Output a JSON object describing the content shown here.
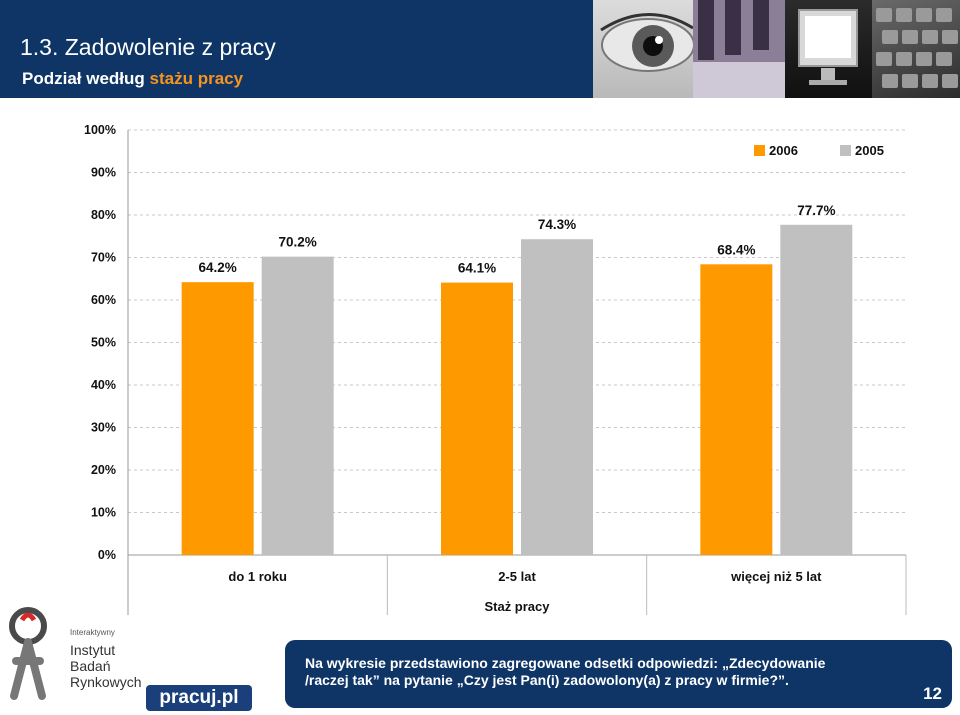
{
  "header": {
    "title": "1.3. Zadowolenie z pracy",
    "subtitle_prefix": "Podział według",
    "subtitle_highlight": "stażu pracy"
  },
  "colors": {
    "header_bg": "#0e3566",
    "accent": "#f7941d",
    "series_2006": "#ff9900",
    "series_2005": "#c0c0c0"
  },
  "chart_data": {
    "type": "bar",
    "categories": [
      "do 1 roku",
      "2-5 lat",
      "więcej niż 5 lat"
    ],
    "series": [
      {
        "name": "2006",
        "values": [
          64.2,
          64.1,
          68.4
        ],
        "labels": [
          "64.2%",
          "64.1%",
          "68.4%"
        ]
      },
      {
        "name": "2005",
        "values": [
          70.2,
          74.3,
          77.7
        ],
        "labels": [
          "70.2%",
          "74.3%",
          "77.7%"
        ]
      }
    ],
    "yticks": [
      "0%",
      "10%",
      "20%",
      "30%",
      "40%",
      "50%",
      "60%",
      "70%",
      "80%",
      "90%",
      "100%"
    ],
    "ylim": [
      0,
      100
    ],
    "xlabel": "Staż pracy",
    "ylabel": "",
    "title": "",
    "legend_position": "top-right",
    "grid": true
  },
  "footer": {
    "ibr_small": "Interaktywny",
    "ibr_lines": [
      "Instytut",
      "Badań",
      "Rynkowych"
    ],
    "pracuj_logo": "pracuj.pl",
    "note_line1": "Na wykresie przedstawiono zagregowane odsetki odpowiedzi: „Zdecydowanie",
    "note_line2": "/raczej tak” na pytanie „Czy jest Pan(i) zadowolony(a) z pracy w firmie?”.",
    "page_number": "12"
  }
}
